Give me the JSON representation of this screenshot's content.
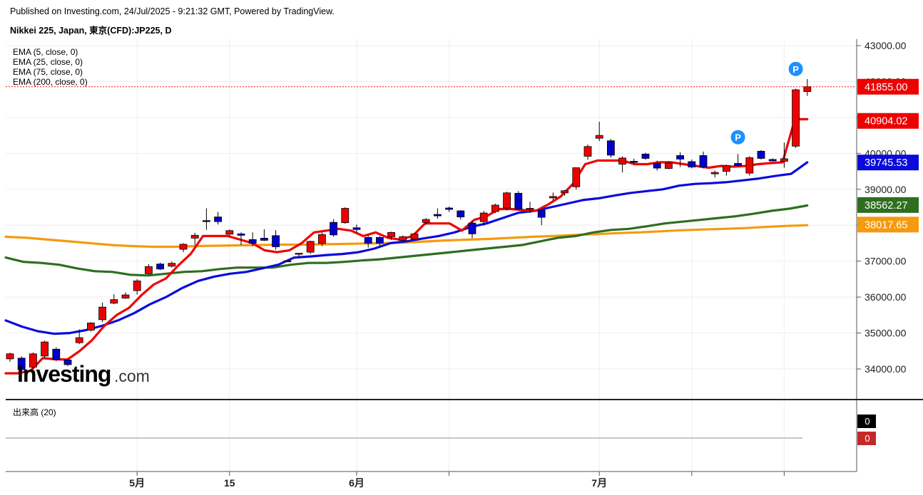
{
  "header": {
    "published": "Published on Investing.com, 24/Jul/2025 - 9:21:32 GMT, Powered by TradingView.",
    "instrument": "Nikkei 225, Japan, 東京(CFD):JP225, D"
  },
  "watermark": {
    "brand": "Investing",
    "suffix": ".com"
  },
  "indicators": [
    "EMA (5, close, 0)",
    "EMA (25, close, 0)",
    "EMA (75, close, 0)",
    "EMA (200, close, 0)"
  ],
  "volume_label": "出来高 (20)",
  "volume_values": {
    "upper": "0",
    "lower": "0"
  },
  "markers": [
    "P",
    "P"
  ],
  "colors": {
    "up": "#ee0000",
    "down": "#0000cc",
    "ema5": "#ee0000",
    "ema25": "#0a0adc",
    "ema75": "#2e6e1f",
    "ema200": "#f59a0e",
    "marker": "#1e90ff"
  },
  "chart_data": {
    "type": "candlestick",
    "ylim": [
      33000,
      43000
    ],
    "yticks": [
      "43000.00",
      "42000.00",
      "41000.00",
      "40000.00",
      "39000.00",
      "38000.00",
      "37000.00",
      "36000.00",
      "35000.00",
      "34000.00"
    ],
    "xticks": [
      {
        "label": "5月",
        "day": 11
      },
      {
        "label": "15",
        "day": 19
      },
      {
        "label": "6月",
        "day": 30
      },
      {
        "label": "7月",
        "day": 51
      }
    ],
    "xgrid_days": [
      11,
      19,
      30,
      38,
      51,
      59,
      67
    ],
    "candles": [
      [
        34280,
        34420,
        34200,
        34450
      ],
      [
        34300,
        33980,
        33950,
        34350
      ],
      [
        34050,
        34420,
        33990,
        34460
      ],
      [
        34360,
        34750,
        34300,
        34790
      ],
      [
        34550,
        34260,
        34220,
        34600
      ],
      [
        34250,
        34120,
        34080,
        34290
      ],
      [
        34730,
        34870,
        34690,
        35100
      ],
      [
        35080,
        35280,
        35040,
        35300
      ],
      [
        35370,
        35720,
        35300,
        35850
      ],
      [
        35830,
        35930,
        35800,
        36080
      ],
      [
        35970,
        36060,
        35950,
        36130
      ],
      [
        36180,
        36450,
        36070,
        36500
      ],
      [
        36650,
        36850,
        36620,
        36920
      ],
      [
        36920,
        36780,
        36750,
        36960
      ],
      [
        36860,
        36940,
        36820,
        36990
      ],
      [
        37330,
        37470,
        37250,
        37500
      ],
      [
        37640,
        37720,
        37450,
        37790
      ],
      [
        38130,
        38120,
        37870,
        38470
      ],
      [
        38230,
        38100,
        38020,
        38370
      ],
      [
        37750,
        37850,
        37680,
        37880
      ],
      [
        37760,
        37720,
        37450,
        37800
      ],
      [
        37600,
        37500,
        37420,
        37800
      ],
      [
        37640,
        37580,
        37560,
        37890
      ],
      [
        37710,
        37400,
        37320,
        37860
      ],
      [
        37000,
        37010,
        36980,
        37030
      ],
      [
        37200,
        37220,
        37100,
        37230
      ],
      [
        37250,
        37550,
        37200,
        37570
      ],
      [
        37490,
        37740,
        37420,
        37800
      ],
      [
        38080,
        37730,
        37680,
        38170
      ],
      [
        38070,
        38470,
        38040,
        38500
      ],
      [
        37930,
        37880,
        37780,
        38020
      ],
      [
        37660,
        37500,
        37380,
        37720
      ],
      [
        37660,
        37500,
        37400,
        37700
      ],
      [
        37680,
        37800,
        37590,
        37820
      ],
      [
        37580,
        37680,
        37540,
        37720
      ],
      [
        37610,
        37760,
        37590,
        37790
      ],
      [
        38080,
        38160,
        38020,
        38200
      ],
      [
        38300,
        38260,
        38180,
        38470
      ],
      [
        38480,
        38440,
        38370,
        38520
      ],
      [
        38400,
        38230,
        38160,
        38420
      ],
      [
        38060,
        37760,
        37640,
        38130
      ],
      [
        38100,
        38340,
        37990,
        38400
      ],
      [
        38380,
        38560,
        38340,
        38600
      ],
      [
        38480,
        38900,
        38420,
        38930
      ],
      [
        38890,
        38450,
        38420,
        38950
      ],
      [
        38460,
        38470,
        38340,
        38650
      ],
      [
        38420,
        38220,
        38000,
        38460
      ],
      [
        38760,
        38800,
        38690,
        38910
      ],
      [
        38900,
        38960,
        38820,
        38980
      ],
      [
        39070,
        39600,
        38990,
        39600
      ],
      [
        39920,
        40190,
        39820,
        40250
      ],
      [
        40420,
        40500,
        40340,
        40880
      ],
      [
        40350,
        39950,
        39880,
        40400
      ],
      [
        39700,
        39870,
        39470,
        39920
      ],
      [
        39780,
        39770,
        39700,
        39850
      ],
      [
        39980,
        39860,
        39820,
        40020
      ],
      [
        39720,
        39590,
        39520,
        39800
      ],
      [
        39580,
        39730,
        39560,
        39780
      ],
      [
        39940,
        39840,
        39620,
        40030
      ],
      [
        39770,
        39620,
        39580,
        39830
      ],
      [
        39940,
        39620,
        39580,
        40050
      ],
      [
        39430,
        39470,
        39330,
        39520
      ],
      [
        39500,
        39660,
        39380,
        39690
      ],
      [
        39720,
        39660,
        39630,
        39980
      ],
      [
        39450,
        39880,
        39380,
        39920
      ],
      [
        40060,
        39860,
        39830,
        40090
      ],
      [
        39830,
        39790,
        39780,
        39860
      ],
      [
        39780,
        39850,
        39600,
        40300
      ],
      [
        40200,
        41770,
        40150,
        41800
      ],
      [
        41720,
        41855,
        41600,
        42070
      ]
    ],
    "series": [
      {
        "name": "EMA (5, close, 0)",
        "last_value": 40904.02,
        "values": [
          33880,
          33880,
          33950,
          34300,
          34270,
          34260,
          34500,
          34800,
          35200,
          35500,
          35700,
          36050,
          36350,
          36520,
          36880,
          37200,
          37700,
          37700,
          37700,
          37600,
          37500,
          37300,
          37250,
          37300,
          37500,
          37800,
          37850,
          37900,
          37850,
          37700,
          37800,
          37650,
          37600,
          37700,
          38050,
          38050,
          38050,
          37850,
          38150,
          38250,
          38450,
          38450,
          38420,
          38400,
          38580,
          38800,
          39150,
          39700,
          39800,
          39800,
          39800,
          39700,
          39700,
          39750,
          39750,
          39700,
          39650,
          39600,
          39650,
          39630,
          39650,
          39700,
          39730,
          39750,
          40950,
          40950
        ]
      },
      {
        "name": "EMA (25, close, 0)",
        "last_value": 39745.53,
        "values": [
          35350,
          35180,
          35050,
          34980,
          35000,
          35080,
          35200,
          35350,
          35550,
          35800,
          36000,
          36250,
          36450,
          36570,
          36650,
          36700,
          36800,
          36900,
          37100,
          37130,
          37170,
          37200,
          37250,
          37350,
          37500,
          37550,
          37630,
          37700,
          37800,
          37950,
          38050,
          38200,
          38350,
          38400,
          38500,
          38600,
          38700,
          38750,
          38830,
          38900,
          38950,
          39000,
          39100,
          39150,
          39170,
          39200,
          39250,
          39300,
          39370,
          39430,
          39750
        ]
      },
      {
        "name": "EMA (75, close, 0)",
        "last_value": 38562.27,
        "values": [
          37100,
          36980,
          36950,
          36900,
          36800,
          36720,
          36700,
          36620,
          36600,
          36650,
          36700,
          36720,
          36780,
          36820,
          36820,
          36820,
          36900,
          36950,
          36950,
          36980,
          37020,
          37050,
          37100,
          37150,
          37200,
          37250,
          37300,
          37350,
          37400,
          37450,
          37550,
          37650,
          37700,
          37800,
          37870,
          37900,
          37970,
          38050,
          38100,
          38150,
          38200,
          38250,
          38320,
          38400,
          38460,
          38550
        ]
      },
      {
        "name": "EMA (200, close, 0)",
        "last_value": 38017.65,
        "values": [
          37680,
          37650,
          37600,
          37550,
          37500,
          37450,
          37420,
          37400,
          37400,
          37420,
          37430,
          37440,
          37450,
          37460,
          37460,
          37470,
          37480,
          37490,
          37500,
          37520,
          37550,
          37580,
          37600,
          37620,
          37650,
          37680,
          37700,
          37730,
          37750,
          37780,
          37800,
          37830,
          37860,
          37880,
          37900,
          37920,
          37950,
          37980,
          38000
        ]
      }
    ],
    "markers": [
      {
        "day": 63,
        "price": 40450
      },
      {
        "day": 68,
        "price": 42350
      }
    ],
    "last_price": {
      "value": 41855,
      "label": "41855.00"
    },
    "value_labels": [
      {
        "series": "last",
        "label": "41855.00"
      },
      {
        "series": "EMA (5, close, 0)",
        "label": "40904.02"
      },
      {
        "series": "EMA (25, close, 0)",
        "label": "39745.53"
      },
      {
        "series": "EMA (75, close, 0)",
        "label": "38562.27"
      },
      {
        "series": "EMA (200, close, 0)",
        "label": "38017.65"
      }
    ]
  }
}
